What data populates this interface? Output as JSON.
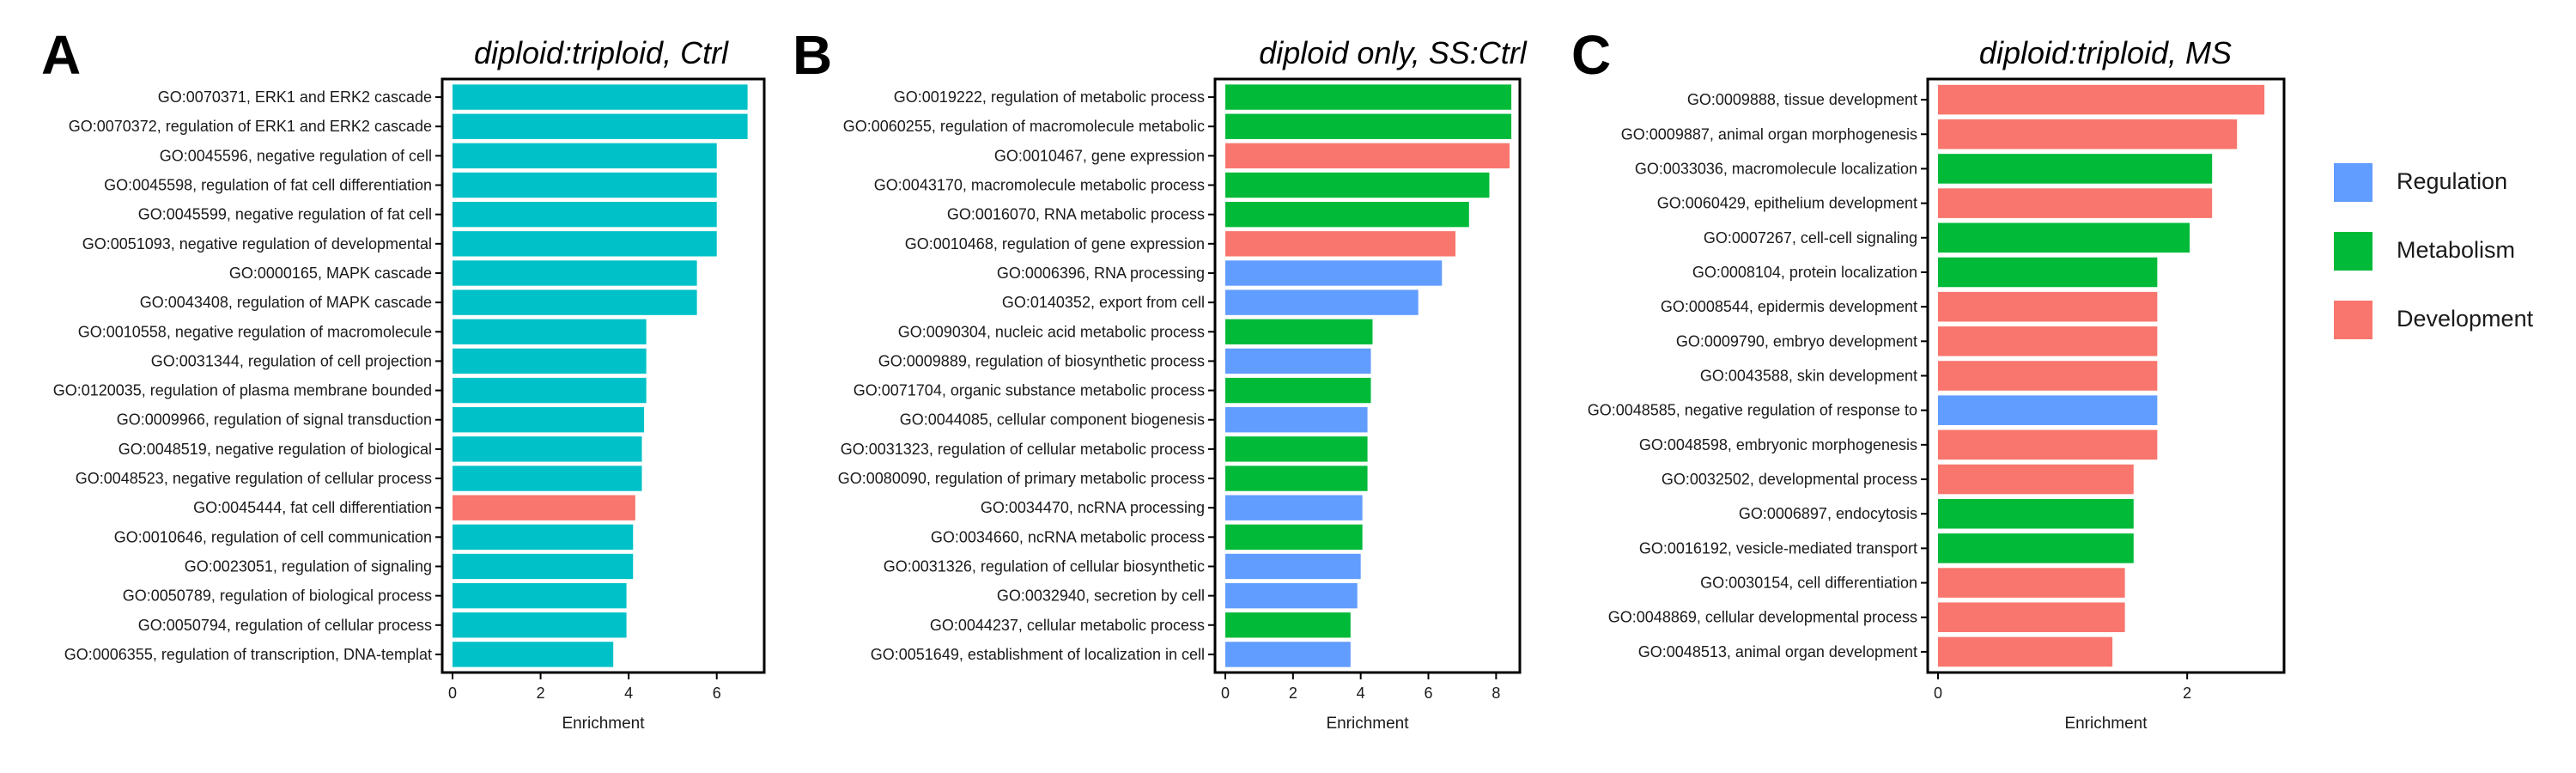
{
  "colors": {
    "ctrl": "#00C1C8",
    "Regulation": "#619CFF",
    "Metabolism": "#00BA38",
    "Development": "#F8766D"
  },
  "legend": {
    "items": [
      {
        "label": "Regulation",
        "category": "Regulation"
      },
      {
        "label": "Metabolism",
        "category": "Metabolism"
      },
      {
        "label": "Development",
        "category": "Development"
      }
    ]
  },
  "chart_data": [
    {
      "type": "bar",
      "orientation": "horizontal",
      "panel": "A",
      "title": "diploid:triploid,  Ctrl",
      "xlabel": "Enrichment",
      "xlim": [
        0,
        7
      ],
      "xticks": [
        0,
        2,
        4,
        6
      ],
      "categories": [
        "GO:0070371, ERK1 and ERK2 cascade",
        "GO:0070372, regulation of ERK1 and ERK2 cascade",
        "GO:0045596, negative regulation of cell",
        "GO:0045598, regulation of fat cell differentiation",
        "GO:0045599, negative regulation of fat cell",
        "GO:0051093, negative regulation of developmental",
        "GO:0000165, MAPK cascade",
        "GO:0043408, regulation of MAPK cascade",
        "GO:0010558, negative regulation of macromolecule",
        "GO:0031344, regulation of cell projection",
        "GO:0120035, regulation of plasma membrane bounded",
        "GO:0009966, regulation of signal transduction",
        "GO:0048519, negative regulation of biological",
        "GO:0048523, negative regulation of cellular process",
        "GO:0045444, fat cell differentiation",
        "GO:0010646, regulation of cell communication",
        "GO:0023051, regulation of signaling",
        "GO:0050789, regulation of biological process",
        "GO:0050794, regulation of cellular process",
        "GO:0006355, regulation of transcription, DNA-templat"
      ],
      "values": [
        6.7,
        6.7,
        6.0,
        6.0,
        6.0,
        6.0,
        5.55,
        5.55,
        4.4,
        4.4,
        4.4,
        4.35,
        4.3,
        4.3,
        4.15,
        4.1,
        4.1,
        3.95,
        3.95,
        3.65
      ],
      "bar_categories": [
        "ctrl",
        "ctrl",
        "ctrl",
        "ctrl",
        "ctrl",
        "ctrl",
        "ctrl",
        "ctrl",
        "ctrl",
        "ctrl",
        "ctrl",
        "ctrl",
        "ctrl",
        "ctrl",
        "Development",
        "ctrl",
        "ctrl",
        "ctrl",
        "ctrl",
        "ctrl"
      ]
    },
    {
      "type": "bar",
      "orientation": "horizontal",
      "panel": "B",
      "title": "diploid  only,  SS:Ctrl",
      "xlabel": "Enrichment",
      "xlim": [
        0,
        8.6
      ],
      "xticks": [
        0,
        2,
        4,
        6,
        8
      ],
      "categories": [
        "GO:0019222, regulation of metabolic process",
        "GO:0060255, regulation of macromolecule metabolic",
        "GO:0010467, gene expression",
        "GO:0043170, macromolecule metabolic process",
        "GO:0016070, RNA metabolic process",
        "GO:0010468, regulation of gene expression",
        "GO:0006396, RNA processing",
        "GO:0140352, export from cell",
        "GO:0090304, nucleic acid metabolic process",
        "GO:0009889, regulation of biosynthetic process",
        "GO:0071704, organic substance metabolic process",
        "GO:0044085, cellular component biogenesis",
        "GO:0031323, regulation of cellular metabolic process",
        "GO:0080090, regulation of primary metabolic process",
        "GO:0034470, ncRNA processing",
        "GO:0034660, ncRNA metabolic process",
        "GO:0031326, regulation of cellular biosynthetic",
        "GO:0032940, secretion by cell",
        "GO:0044237, cellular metabolic process",
        "GO:0051649, establishment of localization in cell"
      ],
      "values": [
        8.45,
        8.45,
        8.4,
        7.8,
        7.2,
        6.8,
        6.4,
        5.7,
        4.35,
        4.3,
        4.3,
        4.2,
        4.2,
        4.2,
        4.05,
        4.05,
        4.0,
        3.9,
        3.7,
        3.7
      ],
      "bar_categories": [
        "Metabolism",
        "Metabolism",
        "Development",
        "Metabolism",
        "Metabolism",
        "Development",
        "Regulation",
        "Regulation",
        "Metabolism",
        "Regulation",
        "Metabolism",
        "Regulation",
        "Metabolism",
        "Metabolism",
        "Regulation",
        "Metabolism",
        "Regulation",
        "Regulation",
        "Metabolism",
        "Regulation"
      ]
    },
    {
      "type": "bar",
      "orientation": "horizontal",
      "panel": "C",
      "title": "diploid:triploid,  MS",
      "xlabel": "Enrichment",
      "xlim": [
        0,
        2.75
      ],
      "xticks": [
        0,
        2
      ],
      "categories": [
        "GO:0009888, tissue development",
        "GO:0009887, animal organ morphogenesis",
        "GO:0033036, macromolecule localization",
        "GO:0060429, epithelium development",
        "GO:0007267, cell-cell signaling",
        "GO:0008104, protein localization",
        "GO:0008544, epidermis development",
        "GO:0009790, embryo development",
        "GO:0043588, skin development",
        "GO:0048585, negative regulation of response to",
        "GO:0048598, embryonic morphogenesis",
        "GO:0032502, developmental process",
        "GO:0006897, endocytosis",
        "GO:0016192, vesicle-mediated transport",
        "GO:0030154, cell differentiation",
        "GO:0048869, cellular developmental process",
        "GO:0048513, animal organ development"
      ],
      "values": [
        2.62,
        2.4,
        2.2,
        2.2,
        2.02,
        1.76,
        1.76,
        1.76,
        1.76,
        1.76,
        1.76,
        1.57,
        1.57,
        1.57,
        1.5,
        1.5,
        1.4
      ],
      "bar_categories": [
        "Development",
        "Development",
        "Metabolism",
        "Development",
        "Metabolism",
        "Metabolism",
        "Development",
        "Development",
        "Development",
        "Regulation",
        "Development",
        "Development",
        "Metabolism",
        "Metabolism",
        "Development",
        "Development",
        "Development"
      ]
    }
  ]
}
